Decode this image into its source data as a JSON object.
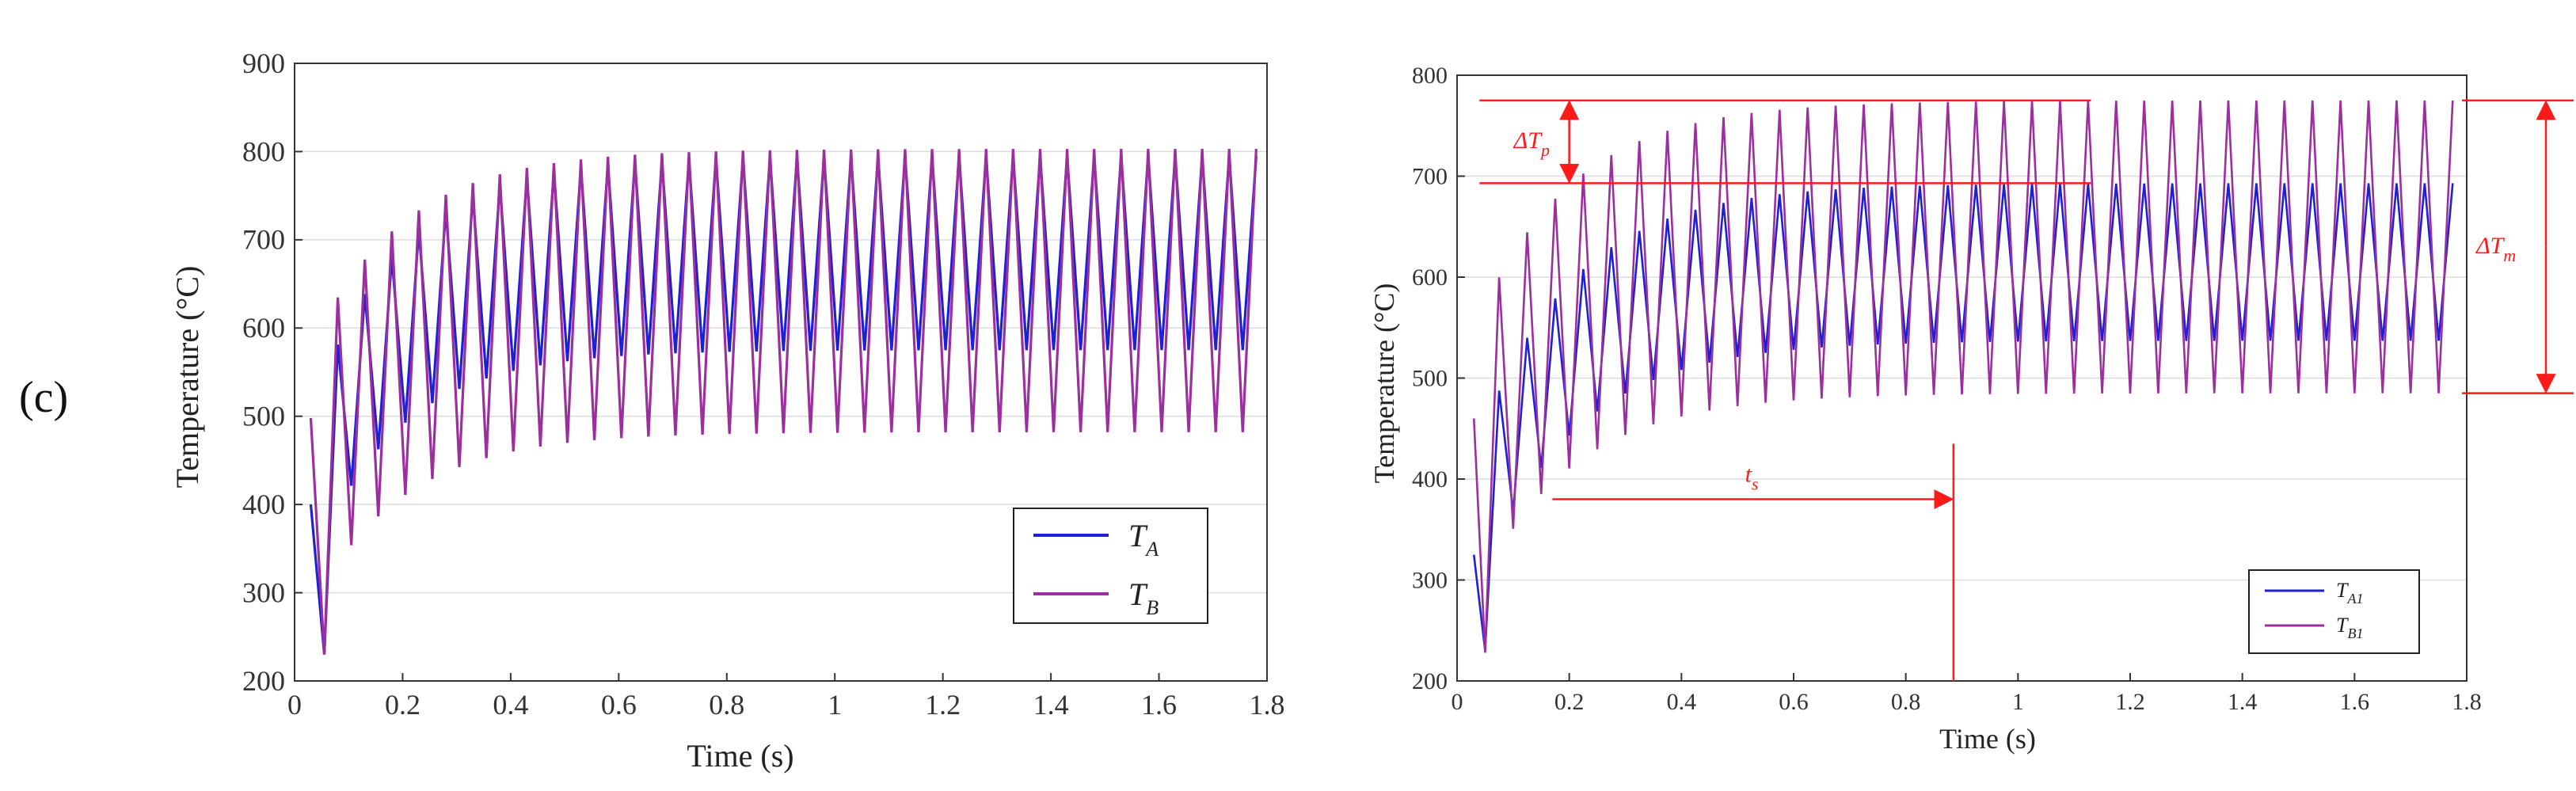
{
  "panel_label": "(c)",
  "colors": {
    "blue": "#1f1fd6",
    "purple": "#9b2f9e",
    "red": "#ff1a1a",
    "grid": "#dcdcdc",
    "axis": "#333333"
  },
  "chart_data": [
    {
      "type": "line",
      "xlabel": "Time (s)",
      "ylabel": "Temperature (°C)",
      "xlim": [
        0,
        1.8
      ],
      "ylim": [
        200,
        900
      ],
      "xticks": [
        "0",
        "0.2",
        "0.4",
        "0.6",
        "0.8",
        "1",
        "1.2",
        "1.4",
        "1.6",
        "1.8"
      ],
      "yticks": [
        "200",
        "300",
        "400",
        "500",
        "600",
        "700",
        "800",
        "900"
      ],
      "grid": "horizontal",
      "legend_position": "bottom-right",
      "legend": [
        {
          "label": "T",
          "sub": "A",
          "color": "#1f1fd6"
        },
        {
          "label": "T",
          "sub": "B",
          "color": "#9b2f9e"
        }
      ],
      "series": [
        {
          "name": "TA",
          "color": "#1f1fd6",
          "period": 0.05,
          "start": [
            0.03,
            400
          ],
          "first_min": [
            0.055,
            230
          ],
          "peak_start": 545,
          "peak_ss": 795,
          "trough_start": 365,
          "trough_ss": 575,
          "tau": 0.16,
          "t_end": 1.78
        },
        {
          "name": "TB",
          "color": "#9b2f9e",
          "period": 0.05,
          "start": [
            0.03,
            498
          ],
          "first_min": [
            0.055,
            230
          ],
          "peak_start": 608,
          "peak_ss": 803,
          "trough_start": 310,
          "trough_ss": 482,
          "tau": 0.17,
          "t_end": 1.78
        }
      ]
    },
    {
      "type": "line",
      "xlabel": "Time (s)",
      "ylabel": "Temperature (°C)",
      "xlim": [
        0,
        1.8
      ],
      "ylim": [
        200,
        800
      ],
      "xticks": [
        "0",
        "0.2",
        "0.4",
        "0.6",
        "0.8",
        "1",
        "1.2",
        "1.4",
        "1.6",
        "1.8"
      ],
      "yticks": [
        "200",
        "300",
        "400",
        "500",
        "600",
        "700",
        "800"
      ],
      "grid": "horizontal",
      "legend_position": "bottom-right",
      "legend": [
        {
          "label": "T",
          "sub": "A1",
          "color": "#1f1fd6"
        },
        {
          "label": "T",
          "sub": "B1",
          "color": "#9b2f9e"
        }
      ],
      "series": [
        {
          "name": "TA1",
          "color": "#1f1fd6",
          "period": 0.05,
          "start": [
            0.03,
            325
          ],
          "first_min": [
            0.05,
            230
          ],
          "peak_start": 455,
          "peak_ss": 693,
          "trough_start": 310,
          "trough_ss": 537,
          "tau": 0.17,
          "t_end": 1.79
        },
        {
          "name": "TB1",
          "color": "#9b2f9e",
          "period": 0.05,
          "start": [
            0.03,
            460
          ],
          "first_min": [
            0.05,
            228
          ],
          "peak_start": 572,
          "peak_ss": 775,
          "trough_start": 305,
          "trough_ss": 485,
          "tau": 0.17,
          "t_end": 1.79
        }
      ],
      "annotations": {
        "delta_tp": {
          "label": "ΔT",
          "sub": "p",
          "upper": 775,
          "lower": 693,
          "x": 0.2
        },
        "delta_tm": {
          "label": "ΔT",
          "sub": "m",
          "upper": 775,
          "lower": 485
        },
        "ts": {
          "label": "t",
          "sub": "s",
          "x_start": 0.17,
          "x_end": 0.885,
          "y": 380,
          "vline_top": 435
        },
        "hline_upper_x": [
          0.04,
          1.13
        ],
        "hline_lower_x": [
          0.04,
          1.13
        ]
      }
    }
  ]
}
